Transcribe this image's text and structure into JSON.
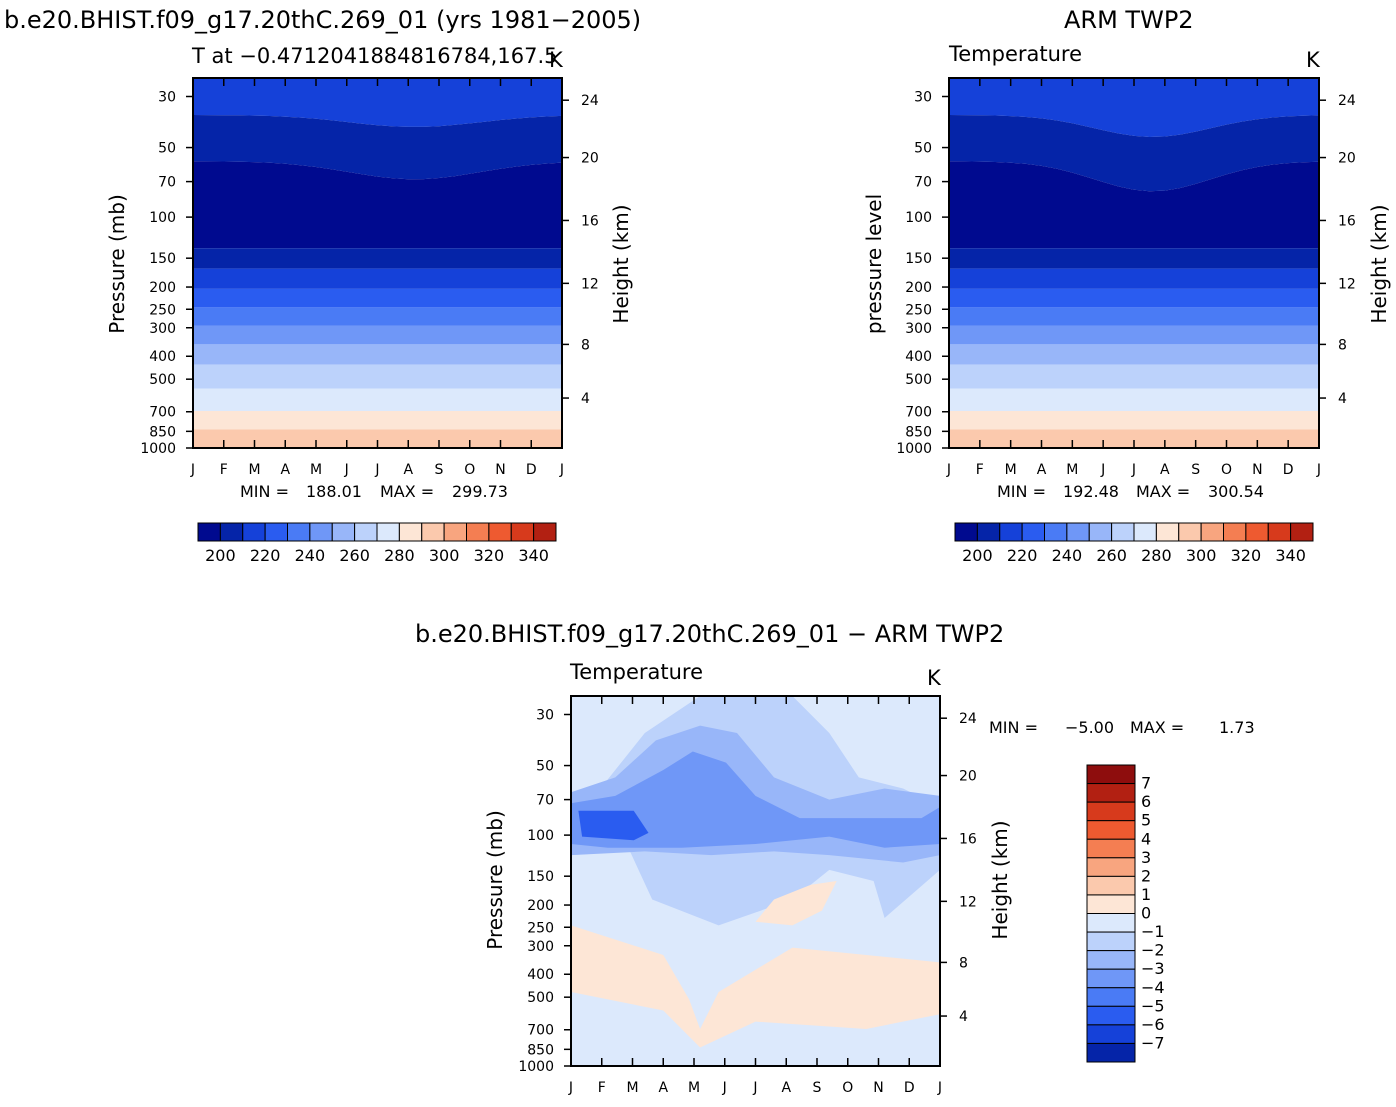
{
  "palettes": {
    "temperature": [
      "#000a8f",
      "#0524a8",
      "#1541d9",
      "#2a5cf0",
      "#4a7bf5",
      "#6f97f7",
      "#98b6f9",
      "#bcd2fb",
      "#dce9fc",
      "#fde6d6",
      "#fbc9ad",
      "#f8a57f",
      "#f47e52",
      "#ee5a30",
      "#d73a1c",
      "#b22012",
      "#8e0d0d"
    ],
    "difference": [
      "#000a8f",
      "#0524a8",
      "#1541d9",
      "#2a5cf0",
      "#4a7bf5",
      "#6f97f7",
      "#98b6f9",
      "#bcd2fb",
      "#dce9fc",
      "#fde6d6",
      "#fbc9ad",
      "#f8a57f",
      "#f47e52",
      "#ee5a30",
      "#d73a1c",
      "#b22012",
      "#8e0d0d"
    ]
  },
  "panels": [
    {
      "id": "model",
      "title": "b.e20.BHIST.f09_g17.20thC.269_01 (yrs 1981−2005)",
      "subtitle_left": "T at −0.4712041884816784,167.5",
      "subtitle_right": "K",
      "ylabel_left": "Pressure (mb)",
      "ylabel_right": "Height (km)",
      "min_label": "MIN =",
      "min_value": "188.01",
      "max_label": "MAX =",
      "max_value": "299.73"
    },
    {
      "id": "obs",
      "title": "ARM TWP2",
      "subtitle_left": "Temperature",
      "subtitle_right": "K",
      "ylabel_left": "pressure level",
      "ylabel_right": "Height (km)",
      "min_label": "MIN =",
      "min_value": "192.48",
      "max_label": "MAX =",
      "max_value": "300.54"
    },
    {
      "id": "diff",
      "title": "b.e20.BHIST.f09_g17.20thC.269_01 − ARM TWP2",
      "subtitle_left": "Temperature",
      "subtitle_right": "K",
      "ylabel_left": "Pressure (mb)",
      "ylabel_right": "Height (km)",
      "min_label": "MIN =",
      "min_value": "−5.00",
      "max_label": "MAX =",
      "max_value": "1.73"
    }
  ],
  "chart_data": [
    {
      "type": "heatmap",
      "panel": "model",
      "x_categories": [
        "J",
        "F",
        "M",
        "A",
        "M",
        "J",
        "J",
        "A",
        "S",
        "O",
        "N",
        "D",
        "J"
      ],
      "y_ticks_pressure_mb": [
        "30",
        "50",
        "70",
        "100",
        "150",
        "200",
        "250",
        "300",
        "400",
        "500",
        "700",
        "850",
        "1000"
      ],
      "y_ticks_height_km": [
        "24",
        "20",
        "16",
        "12",
        "8",
        "4"
      ],
      "contour_levels": [
        200,
        210,
        220,
        230,
        240,
        250,
        260,
        270,
        280,
        290,
        300,
        310,
        320,
        330,
        340
      ],
      "colorbar_labels": [
        "200",
        "220",
        "240",
        "260",
        "280",
        "300",
        "320",
        "340"
      ],
      "min": 188.01,
      "max": 299.73,
      "units": "K"
    },
    {
      "type": "heatmap",
      "panel": "obs",
      "x_categories": [
        "J",
        "F",
        "M",
        "A",
        "M",
        "J",
        "J",
        "A",
        "S",
        "O",
        "N",
        "D",
        "J"
      ],
      "y_ticks_pressure_mb": [
        "30",
        "50",
        "70",
        "100",
        "150",
        "200",
        "250",
        "300",
        "400",
        "500",
        "700",
        "850",
        "1000"
      ],
      "y_ticks_height_km": [
        "24",
        "20",
        "16",
        "12",
        "8",
        "4"
      ],
      "contour_levels": [
        200,
        210,
        220,
        230,
        240,
        250,
        260,
        270,
        280,
        290,
        300,
        310,
        320,
        330,
        340
      ],
      "colorbar_labels": [
        "200",
        "220",
        "240",
        "260",
        "280",
        "300",
        "320",
        "340"
      ],
      "min": 192.48,
      "max": 300.54,
      "units": "K"
    },
    {
      "type": "heatmap",
      "panel": "diff",
      "x_categories": [
        "J",
        "F",
        "M",
        "A",
        "M",
        "J",
        "J",
        "A",
        "S",
        "O",
        "N",
        "D",
        "J"
      ],
      "y_ticks_pressure_mb": [
        "30",
        "50",
        "70",
        "100",
        "150",
        "200",
        "250",
        "300",
        "400",
        "500",
        "700",
        "850",
        "1000"
      ],
      "y_ticks_height_km": [
        "24",
        "20",
        "16",
        "12",
        "8",
        "4"
      ],
      "contour_levels": [
        -7,
        -6,
        -5,
        -4,
        -3,
        -2,
        -1,
        0,
        1,
        2,
        3,
        4,
        5,
        6,
        7
      ],
      "colorbar_labels": [
        "7",
        "6",
        "5",
        "4",
        "3",
        "2",
        "1",
        "0",
        "−1",
        "−2",
        "−3",
        "−4",
        "−5",
        "−6",
        "−7"
      ],
      "min": -5.0,
      "max": 1.73,
      "units": "K"
    }
  ]
}
